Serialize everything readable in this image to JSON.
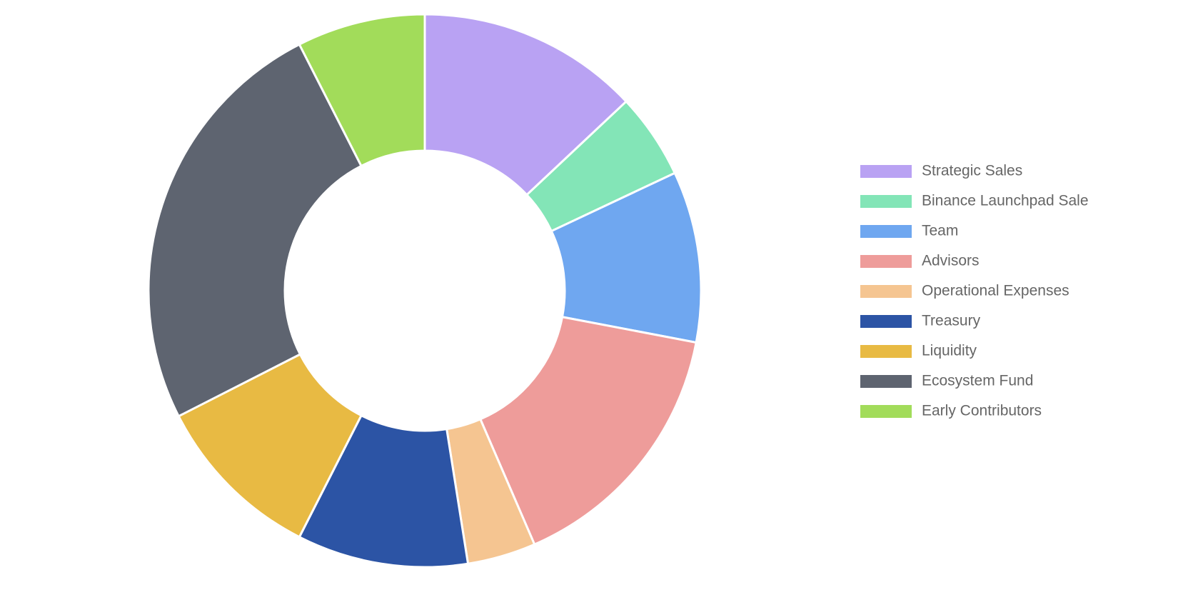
{
  "chart_data": {
    "type": "doughnut",
    "categories": [
      "Strategic Sales",
      "Binance Launchpad Sale",
      "Team",
      "Advisors",
      "Operational Expenses",
      "Treasury",
      "Liquidity",
      "Ecosystem Fund",
      "Early Contributors"
    ],
    "values": [
      13,
      5,
      10,
      15.5,
      4,
      10,
      10,
      25,
      7.5
    ],
    "colors": [
      "#b9a2f3",
      "#83e5b7",
      "#6fa7f0",
      "#ee9c9a",
      "#f5c591",
      "#2c54a5",
      "#e8ba43",
      "#5e6470",
      "#a2dc5a"
    ],
    "legend": "right"
  }
}
